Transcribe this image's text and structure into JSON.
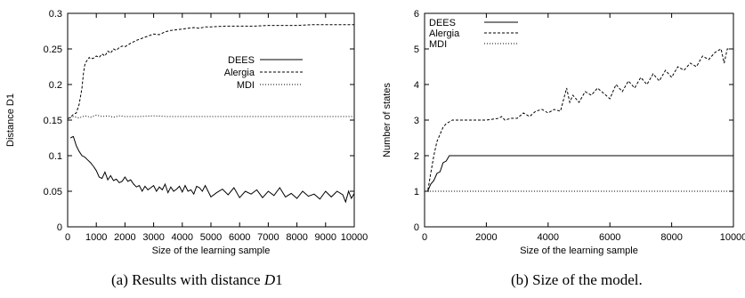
{
  "captions": {
    "left_prefix": "(a) Results with distance ",
    "left_var": "D",
    "left_suffix": "1",
    "right": "(b) Size of the model."
  },
  "chart_data": [
    {
      "type": "line",
      "xlabel": "Size of the learning sample",
      "ylabel": "Distance D1",
      "xlim": [
        0,
        10000
      ],
      "ylim": [
        0,
        0.3
      ],
      "xticks": [
        0,
        1000,
        2000,
        3000,
        4000,
        5000,
        6000,
        7000,
        8000,
        9000,
        10000
      ],
      "xtick_labels": [
        "0",
        "1000",
        "2000",
        "3000",
        "4000",
        "5000",
        "6000",
        "7000",
        "8000",
        "9000",
        "10000"
      ],
      "yticks": [
        0,
        0.05,
        0.1,
        0.15,
        0.2,
        0.25,
        0.3
      ],
      "ytick_labels": [
        "0",
        "0.05",
        "0.1",
        "0.15",
        "0.2",
        "0.25",
        "0.3"
      ],
      "grid": false,
      "legend_position": "right, upper middle",
      "series": [
        {
          "name": "DEES",
          "dash": "solid",
          "x": [
            100,
            200,
            300,
            400,
            500,
            600,
            700,
            800,
            900,
            1000,
            1100,
            1200,
            1300,
            1400,
            1500,
            1600,
            1700,
            1800,
            1900,
            2000,
            2100,
            2200,
            2300,
            2400,
            2500,
            2600,
            2700,
            2800,
            2900,
            3000,
            3100,
            3200,
            3300,
            3400,
            3500,
            3600,
            3700,
            3800,
            3900,
            4000,
            4100,
            4200,
            4300,
            4400,
            4500,
            4600,
            4700,
            4800,
            4900,
            5000,
            5200,
            5400,
            5600,
            5800,
            6000,
            6200,
            6400,
            6600,
            6800,
            7000,
            7200,
            7400,
            7600,
            7800,
            8000,
            8200,
            8400,
            8600,
            8800,
            9000,
            9200,
            9400,
            9600,
            9700,
            9800,
            9900,
            10000
          ],
          "y": [
            0.125,
            0.127,
            0.114,
            0.106,
            0.1,
            0.098,
            0.094,
            0.09,
            0.085,
            0.079,
            0.07,
            0.068,
            0.077,
            0.066,
            0.072,
            0.065,
            0.067,
            0.062,
            0.064,
            0.07,
            0.064,
            0.066,
            0.06,
            0.056,
            0.058,
            0.05,
            0.057,
            0.052,
            0.055,
            0.058,
            0.05,
            0.056,
            0.052,
            0.06,
            0.048,
            0.056,
            0.05,
            0.053,
            0.057,
            0.049,
            0.058,
            0.05,
            0.052,
            0.046,
            0.057,
            0.055,
            0.05,
            0.058,
            0.05,
            0.042,
            0.048,
            0.053,
            0.045,
            0.055,
            0.041,
            0.05,
            0.046,
            0.052,
            0.041,
            0.05,
            0.044,
            0.055,
            0.042,
            0.047,
            0.04,
            0.05,
            0.043,
            0.046,
            0.039,
            0.05,
            0.042,
            0.05,
            0.045,
            0.035,
            0.05,
            0.04,
            0.047
          ]
        },
        {
          "name": "Alergia",
          "dash": "dashed",
          "x": [
            0,
            100,
            200,
            300,
            400,
            500,
            550,
            600,
            650,
            700,
            750,
            800,
            900,
            1000,
            1100,
            1200,
            1300,
            1400,
            1500,
            1600,
            1700,
            1800,
            1900,
            2000,
            2200,
            2400,
            2600,
            2800,
            3000,
            3200,
            3400,
            3600,
            3800,
            4000,
            4200,
            4400,
            4600,
            4800,
            5000,
            5500,
            6000,
            6500,
            7000,
            7500,
            8000,
            8500,
            9000,
            9500,
            10000
          ],
          "y": [
            0.152,
            0.154,
            0.158,
            0.16,
            0.172,
            0.195,
            0.215,
            0.228,
            0.232,
            0.235,
            0.238,
            0.236,
            0.237,
            0.24,
            0.238,
            0.243,
            0.24,
            0.247,
            0.244,
            0.25,
            0.248,
            0.252,
            0.254,
            0.253,
            0.258,
            0.262,
            0.265,
            0.268,
            0.271,
            0.27,
            0.274,
            0.276,
            0.277,
            0.278,
            0.279,
            0.28,
            0.279,
            0.281,
            0.281,
            0.282,
            0.282,
            0.282,
            0.283,
            0.283,
            0.283,
            0.284,
            0.284,
            0.284,
            0.284
          ]
        },
        {
          "name": "MDI",
          "dash": "dotted",
          "x": [
            0,
            200,
            400,
            600,
            800,
            1000,
            1200,
            1400,
            1600,
            1800,
            2000,
            2500,
            3000,
            3500,
            4000,
            5000,
            6000,
            7000,
            8000,
            9000,
            10000
          ],
          "y": [
            0.152,
            0.155,
            0.153,
            0.156,
            0.154,
            0.157,
            0.155,
            0.156,
            0.154,
            0.156,
            0.155,
            0.155,
            0.156,
            0.155,
            0.155,
            0.155,
            0.155,
            0.155,
            0.155,
            0.155,
            0.155
          ]
        }
      ]
    },
    {
      "type": "line",
      "xlabel": "Size of the learning sample",
      "ylabel": "Number of states",
      "xlim": [
        0,
        10000
      ],
      "ylim": [
        0,
        6
      ],
      "xticks": [
        0,
        2000,
        4000,
        6000,
        8000,
        10000
      ],
      "xtick_labels": [
        "0",
        "2000",
        "4000",
        "6000",
        "8000",
        "10000"
      ],
      "yticks": [
        0,
        1,
        2,
        3,
        4,
        5,
        6
      ],
      "ytick_labels": [
        "0",
        "1",
        "2",
        "3",
        "4",
        "5",
        "6"
      ],
      "grid": false,
      "legend_position": "top-left",
      "series": [
        {
          "name": "DEES",
          "dash": "solid",
          "x": [
            0,
            100,
            200,
            300,
            400,
            500,
            600,
            700,
            800,
            900,
            1000,
            2000,
            3000,
            4000,
            5000,
            6000,
            7000,
            8000,
            9000,
            10000
          ],
          "y": [
            1,
            1,
            1.2,
            1.3,
            1.5,
            1.55,
            1.8,
            1.85,
            2,
            2,
            2,
            2,
            2,
            2,
            2,
            2,
            2,
            2,
            2,
            2
          ]
        },
        {
          "name": "Alergia",
          "dash": "dashed",
          "x": [
            0,
            100,
            200,
            300,
            400,
            500,
            600,
            700,
            800,
            900,
            1000,
            1500,
            2000,
            2400,
            2500,
            2600,
            2800,
            3000,
            3200,
            3400,
            3600,
            3800,
            4000,
            4200,
            4400,
            4600,
            4700,
            4800,
            5000,
            5200,
            5400,
            5600,
            5800,
            6000,
            6200,
            6400,
            6600,
            6800,
            7000,
            7200,
            7400,
            7600,
            7800,
            8000,
            8200,
            8400,
            8600,
            8800,
            9000,
            9200,
            9400,
            9600,
            9700,
            9800,
            10000
          ],
          "y": [
            1,
            1,
            1.5,
            2.0,
            2.4,
            2.6,
            2.8,
            2.9,
            2.95,
            3,
            3,
            3,
            3,
            3.05,
            3.1,
            3.0,
            3.05,
            3.05,
            3.2,
            3.1,
            3.25,
            3.3,
            3.2,
            3.3,
            3.25,
            3.9,
            3.5,
            3.7,
            3.5,
            3.8,
            3.7,
            3.9,
            3.75,
            3.6,
            4.0,
            3.8,
            4.1,
            3.9,
            4.2,
            4.0,
            4.3,
            4.1,
            4.4,
            4.2,
            4.5,
            4.4,
            4.6,
            4.5,
            4.8,
            4.7,
            4.9,
            5.0,
            4.6,
            5.0,
            5.0
          ]
        },
        {
          "name": "MDI",
          "dash": "dotted",
          "x": [
            0,
            10000
          ],
          "y": [
            1,
            1
          ]
        }
      ]
    }
  ]
}
